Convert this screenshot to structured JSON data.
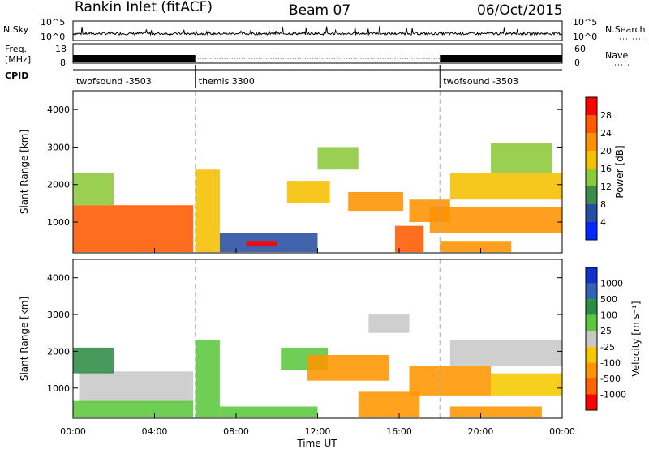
{
  "header": {
    "radar_title": "Rankin Inlet (fitACF)",
    "beam": "Beam 07",
    "date": "06/Oct/2015"
  },
  "top_panels": {
    "nsky_label": "N.Sky",
    "nsky_ticks": [
      "10^5",
      "10^0"
    ],
    "nsearch_label": "N.Search",
    "nsearch_ticks": [
      "10^5",
      "10^0"
    ],
    "freq_label_1": "Freq.",
    "freq_label_2": "[MHz]",
    "freq_ticks": [
      "18",
      "8"
    ],
    "nave_label": "Nave",
    "nave_ticks": [
      "60",
      "0"
    ],
    "cpid_label": "CPID",
    "cpid_segments": [
      {
        "name": "twofsound -3503",
        "start": 0
      },
      {
        "name": "themis 3300",
        "start": 6
      },
      {
        "name": "twofsound -3503",
        "start": 18
      }
    ]
  },
  "power_colorbar": {
    "label": "Power [dB]",
    "ticks": [
      "28",
      "24",
      "20",
      "16",
      "12",
      "8",
      "4"
    ],
    "colors": [
      "#ff0000",
      "#ff5a00",
      "#ff9200",
      "#f5c000",
      "#8cc83c",
      "#3c8c50",
      "#284ea0",
      "#0028ff"
    ]
  },
  "velocity_colorbar": {
    "label": "Velocity [m s⁻¹]",
    "ticks": [
      "1000",
      "500",
      "100",
      "25",
      "-25",
      "-100",
      "-500",
      "-1000"
    ],
    "colors": [
      "#1432c8",
      "#3264b4",
      "#2e8c46",
      "#5ac83c",
      "#c8c8c8",
      "#f5c800",
      "#ff9600",
      "#ff6400",
      "#ff0000"
    ]
  },
  "chart_data": [
    {
      "type": "heatmap",
      "name": "power",
      "xlabel": "",
      "ylabel": "Slant Range [km]",
      "x_range_hours": [
        0,
        24
      ],
      "ylim": [
        180,
        4500
      ],
      "yticks": [
        "4000",
        "3000",
        "2000",
        "1000"
      ],
      "xticks": [
        "00:00",
        "04:00",
        "08:00",
        "12:00",
        "16:00",
        "20:00",
        "00:00"
      ],
      "value_label": "Power [dB]",
      "patches": [
        {
          "t0": 0.0,
          "t1": 5.9,
          "r0": 200,
          "r1": 1450,
          "value": 26
        },
        {
          "t0": 0.0,
          "t1": 2.0,
          "r0": 1450,
          "r1": 2300,
          "value": 14
        },
        {
          "t0": 6.0,
          "t1": 7.2,
          "r0": 200,
          "r1": 2400,
          "value": 16
        },
        {
          "t0": 7.2,
          "t1": 12.0,
          "r0": 200,
          "r1": 700,
          "value": 6
        },
        {
          "t0": 8.5,
          "t1": 10.0,
          "r0": 350,
          "r1": 500,
          "value": 28
        },
        {
          "t0": 10.5,
          "t1": 12.6,
          "r0": 1500,
          "r1": 2100,
          "value": 18
        },
        {
          "t0": 12.0,
          "t1": 14.0,
          "r0": 2400,
          "r1": 3000,
          "value": 14
        },
        {
          "t0": 13.5,
          "t1": 16.2,
          "r0": 1300,
          "r1": 1800,
          "value": 20
        },
        {
          "t0": 15.8,
          "t1": 17.2,
          "r0": 200,
          "r1": 900,
          "value": 26
        },
        {
          "t0": 16.5,
          "t1": 18.5,
          "r0": 1000,
          "r1": 1600,
          "value": 20
        },
        {
          "t0": 17.5,
          "t1": 24.0,
          "r0": 700,
          "r1": 1400,
          "value": 20
        },
        {
          "t0": 18.5,
          "t1": 24.0,
          "r0": 1600,
          "r1": 2300,
          "value": 16
        },
        {
          "t0": 18.0,
          "t1": 21.5,
          "r0": 200,
          "r1": 500,
          "value": 22
        },
        {
          "t0": 20.5,
          "t1": 23.5,
          "r0": 2300,
          "r1": 3100,
          "value": 14
        }
      ]
    },
    {
      "type": "heatmap",
      "name": "velocity",
      "xlabel": "Time UT",
      "ylabel": "Slant Range [km]",
      "x_range_hours": [
        0,
        24
      ],
      "ylim": [
        180,
        4500
      ],
      "yticks": [
        "4000",
        "3000",
        "2000",
        "1000"
      ],
      "xticks": [
        "00:00",
        "04:00",
        "08:00",
        "12:00",
        "16:00",
        "20:00",
        "00:00"
      ],
      "value_label": "Velocity [m s⁻¹]",
      "patches": [
        {
          "t0": 0.3,
          "t1": 5.9,
          "r0": 600,
          "r1": 1450,
          "value": 0
        },
        {
          "t0": 0.0,
          "t1": 5.9,
          "r0": 200,
          "r1": 650,
          "value": 80
        },
        {
          "t0": 0.0,
          "t1": 2.0,
          "r0": 1400,
          "r1": 2100,
          "value": 200
        },
        {
          "t0": 6.0,
          "t1": 7.2,
          "r0": 200,
          "r1": 2300,
          "value": 60
        },
        {
          "t0": 7.2,
          "t1": 12.0,
          "r0": 200,
          "r1": 500,
          "value": 40
        },
        {
          "t0": 10.2,
          "t1": 12.5,
          "r0": 1500,
          "r1": 2100,
          "value": 80
        },
        {
          "t0": 11.5,
          "t1": 15.5,
          "r0": 1200,
          "r1": 1900,
          "value": -300
        },
        {
          "t0": 14.0,
          "t1": 17.0,
          "r0": 200,
          "r1": 900,
          "value": -200
        },
        {
          "t0": 16.5,
          "t1": 20.5,
          "r0": 800,
          "r1": 1600,
          "value": -300
        },
        {
          "t0": 14.5,
          "t1": 16.5,
          "r0": 2500,
          "r1": 3000,
          "value": 0
        },
        {
          "t0": 18.5,
          "t1": 24.0,
          "r0": 1600,
          "r1": 2300,
          "value": 0
        },
        {
          "t0": 20.5,
          "t1": 24.0,
          "r0": 800,
          "r1": 1400,
          "value": -60
        },
        {
          "t0": 18.5,
          "t1": 23.0,
          "r0": 200,
          "r1": 500,
          "value": -200
        }
      ]
    }
  ]
}
